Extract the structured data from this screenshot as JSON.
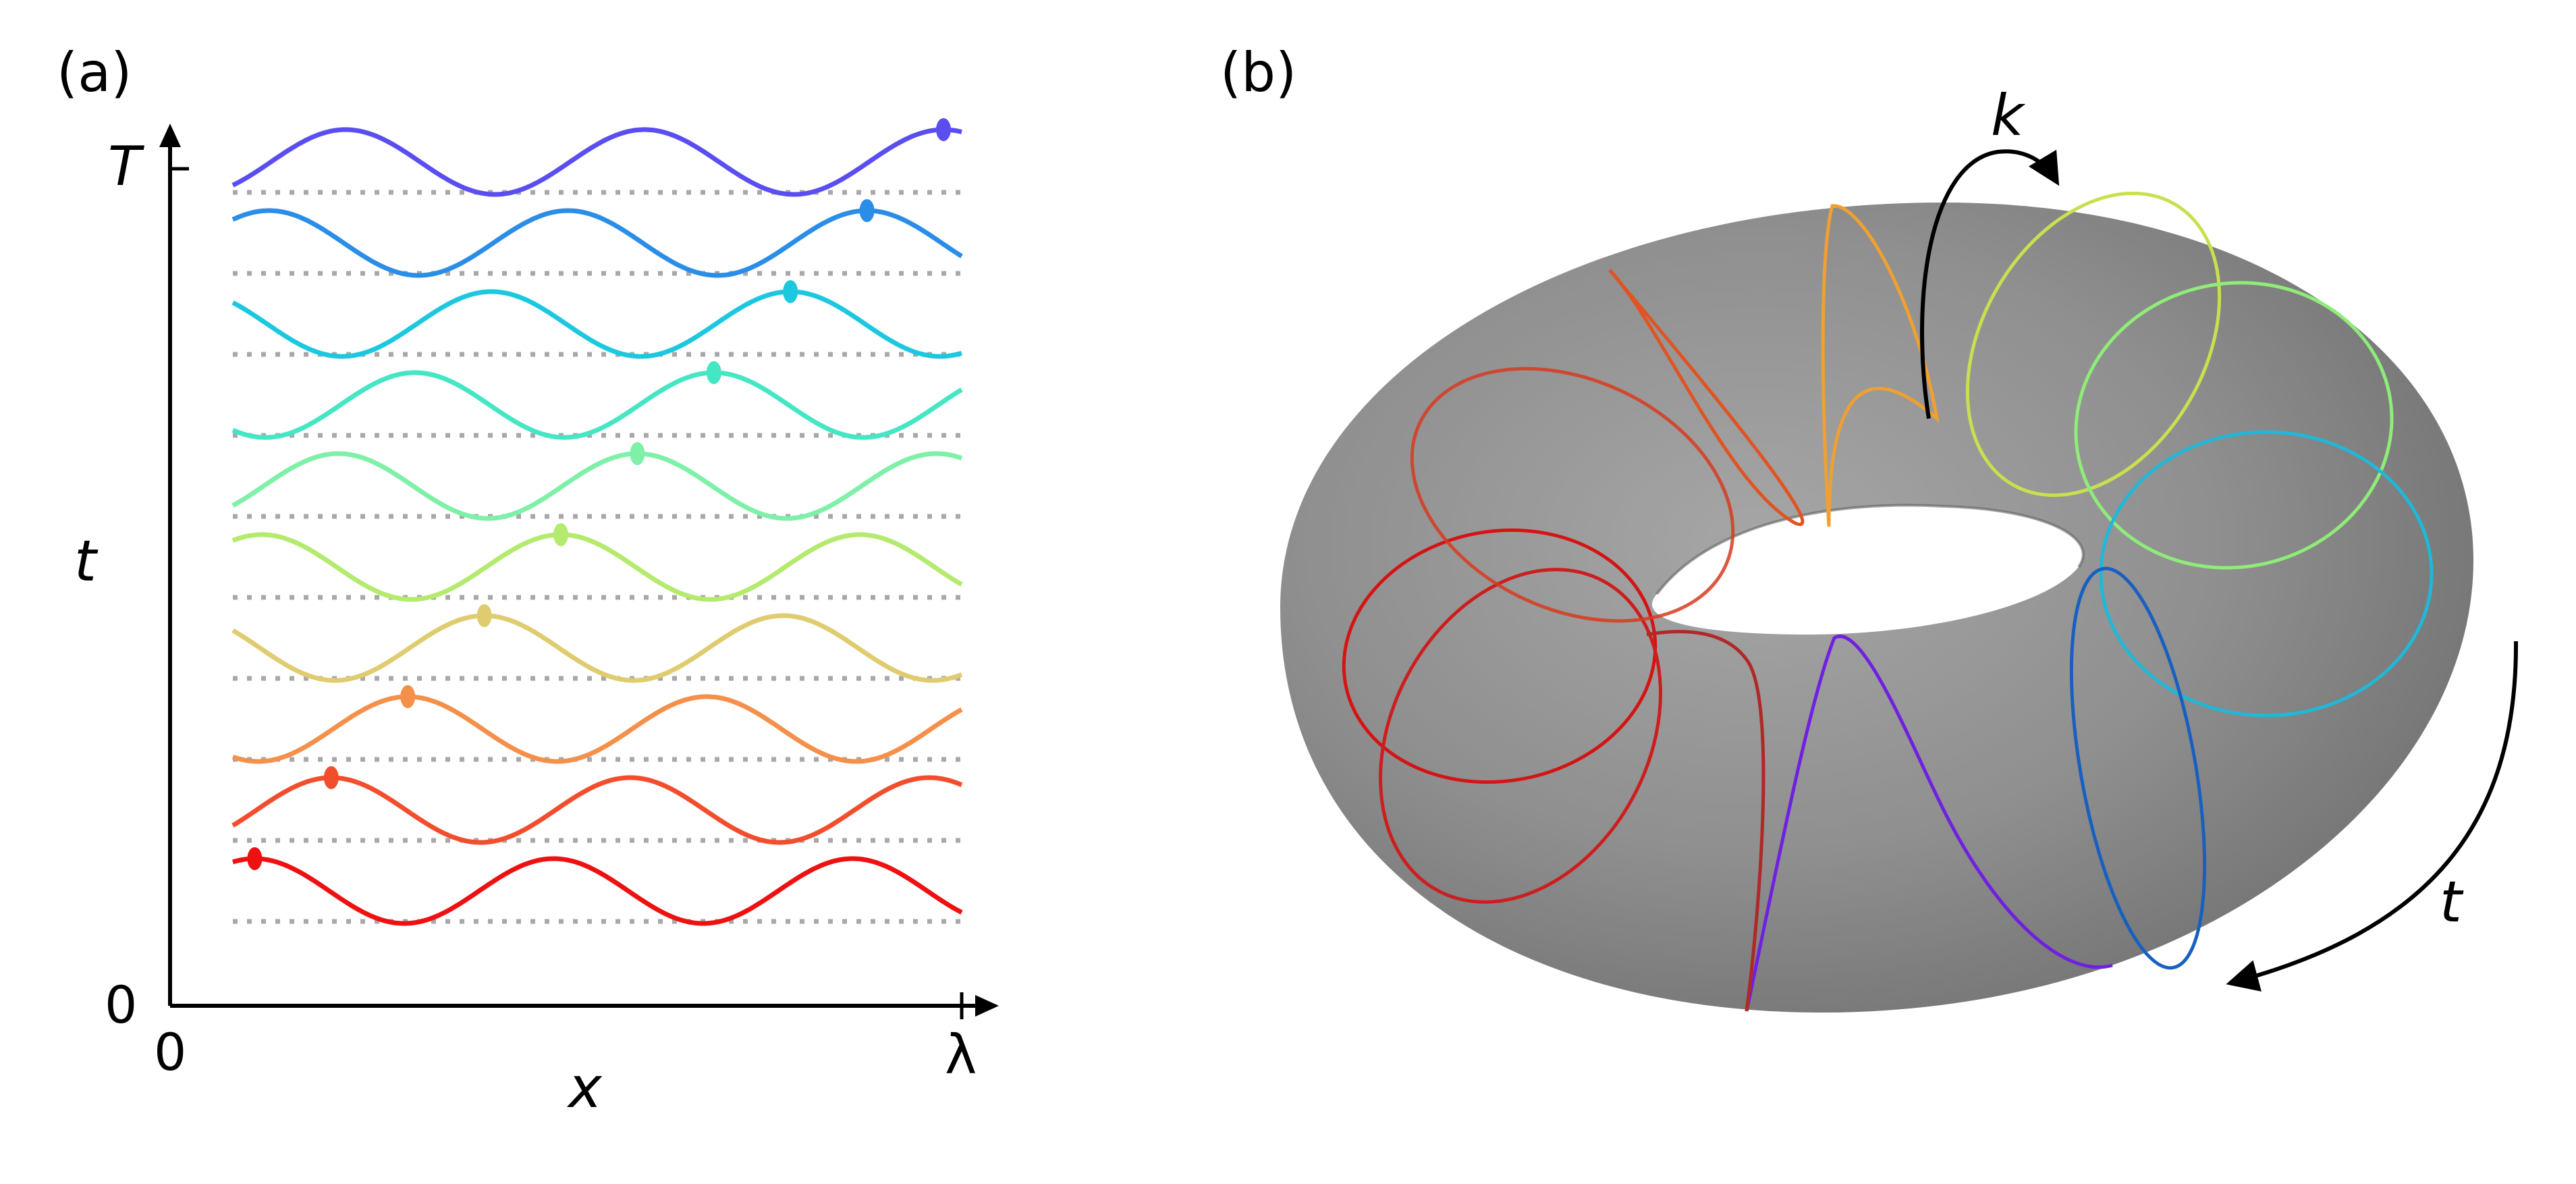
{
  "panel_a": {
    "label": "(a)",
    "x_axis_label": "x",
    "y_axis_label": "t",
    "x_tick_left": "0",
    "x_tick_right": "λ",
    "y_tick_bottom": "0",
    "y_tick_top": "T",
    "waves": [
      {
        "color": "#ee1111",
        "marker_x": 0.03
      },
      {
        "color": "#f24e2e",
        "marker_x": 0.135
      },
      {
        "color": "#f5904a",
        "marker_x": 0.24
      },
      {
        "color": "#e0cc70",
        "marker_x": 0.345
      },
      {
        "color": "#b4ea6e",
        "marker_x": 0.45
      },
      {
        "color": "#7ef0a8",
        "marker_x": 0.555
      },
      {
        "color": "#44e6c4",
        "marker_x": 0.66
      },
      {
        "color": "#1cc8e0",
        "marker_x": 0.765
      },
      {
        "color": "#2a8de8",
        "marker_x": 0.87
      },
      {
        "color": "#5a4ef0",
        "marker_x": 0.975
      }
    ]
  },
  "panel_b": {
    "label": "(b)",
    "arrow_label_k": "k",
    "arrow_label_t": "t",
    "torus_color": "#8e8e8e",
    "loop_colors": [
      "#d41414",
      "#d83a1e",
      "#e05424",
      "#c86a30",
      "#f0a030",
      "#c8e050",
      "#90ec78",
      "#40d8b0",
      "#20b8d8",
      "#1860c0",
      "#7020e0"
    ]
  }
}
